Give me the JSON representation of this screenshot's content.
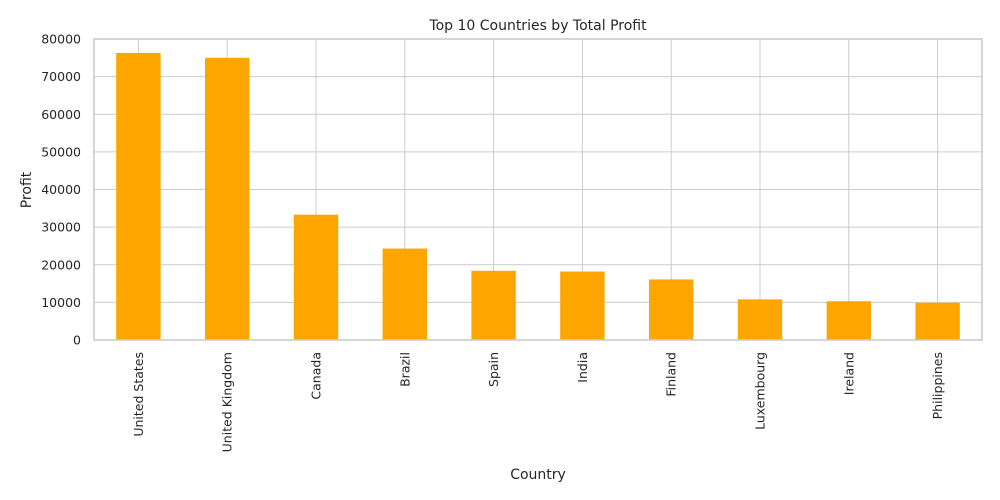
{
  "chart_data": {
    "type": "bar",
    "title": "Top 10 Countries by Total Profit",
    "xlabel": "Country",
    "ylabel": "Profit",
    "categories": [
      "United States",
      "United Kingdom",
      "Canada",
      "Brazil",
      "Spain",
      "India",
      "Finland",
      "Luxembourg",
      "Ireland",
      "Philippines"
    ],
    "values": [
      76300,
      75000,
      33300,
      24300,
      18400,
      18200,
      16100,
      10800,
      10300,
      9900
    ],
    "ylim": [
      0,
      80000
    ],
    "yticks": [
      0,
      10000,
      20000,
      30000,
      40000,
      50000,
      60000,
      70000,
      80000
    ],
    "ytick_labels": [
      "0",
      "10000",
      "20000",
      "30000",
      "40000",
      "50000",
      "60000",
      "70000",
      "80000"
    ],
    "grid": true,
    "bar_color": "#FFA500",
    "grid_color": "#cccccc",
    "text_color": "#262626"
  }
}
